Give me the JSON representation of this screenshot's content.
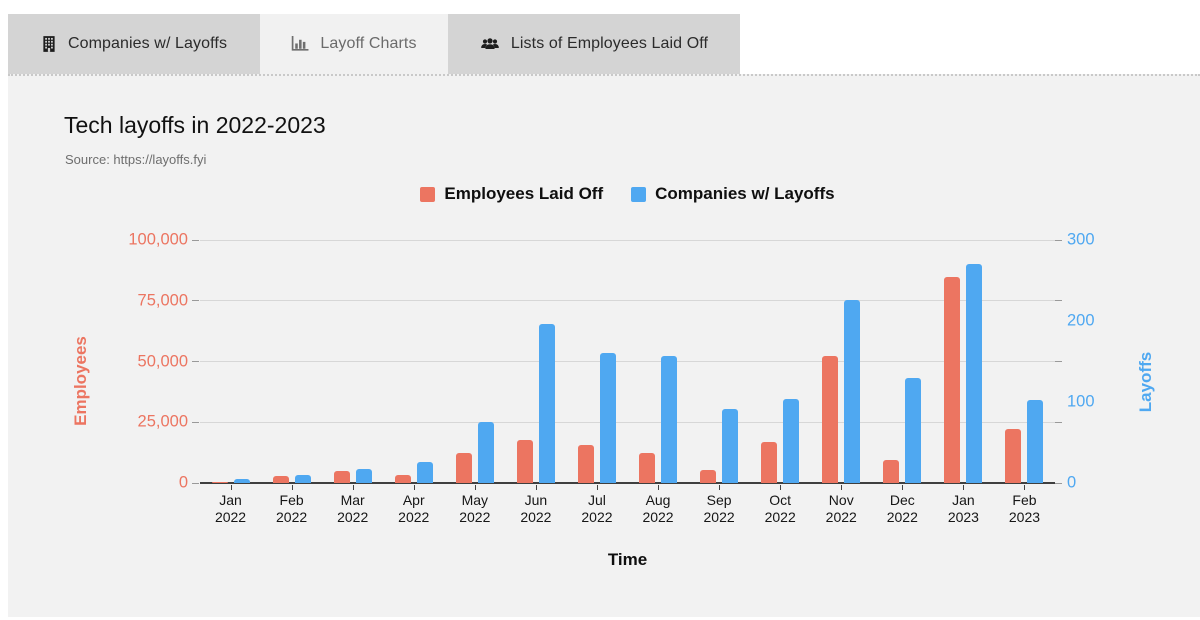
{
  "tabs": [
    {
      "label": "Companies w/ Layoffs",
      "icon": "building-icon",
      "active": false
    },
    {
      "label": "Layoff Charts",
      "icon": "bar-chart-icon",
      "active": true
    },
    {
      "label": "Lists of Employees Laid Off",
      "icon": "users-icon",
      "active": false
    }
  ],
  "chart": {
    "title": "Tech layoffs in 2022-2023",
    "source": "Source: https://layoffs.fyi",
    "xlabel": "Time",
    "left_axis": {
      "title": "Employees",
      "color": "#EC7561",
      "tick_values": [
        0,
        25000,
        50000,
        75000,
        100000
      ],
      "tick_labels": [
        "0",
        "25,000",
        "50,000",
        "75,000",
        "100,000"
      ]
    },
    "right_axis": {
      "title": "Layoffs",
      "color": "#4FA8F1",
      "tick_values": [
        0,
        100,
        200,
        300
      ],
      "tick_labels": [
        "0",
        "100",
        "200",
        "300"
      ]
    }
  },
  "chart_data": {
    "type": "bar",
    "title": "Tech layoffs in 2022-2023",
    "xlabel": "Time",
    "ylabel_left": "Employees",
    "ylabel_right": "Layoffs",
    "ylim_left": [
      0,
      100000
    ],
    "ylim_right": [
      0,
      300
    ],
    "grid": true,
    "legend_position": "top-center",
    "categories": [
      "Jan 2022",
      "Feb 2022",
      "Mar 2022",
      "Apr 2022",
      "May 2022",
      "Jun 2022",
      "Jul 2022",
      "Aug 2022",
      "Sep 2022",
      "Oct 2022",
      "Nov 2022",
      "Dec 2022",
      "Jan 2023",
      "Feb 2023"
    ],
    "series": [
      {
        "name": "Employees Laid Off",
        "axis": "left",
        "color": "#EC7561",
        "values": [
          500,
          3000,
          5100,
          3300,
          12400,
          17500,
          15800,
          12400,
          5300,
          16700,
          52400,
          9400,
          84700,
          22300
        ]
      },
      {
        "name": "Companies w/ Layoffs",
        "axis": "right",
        "color": "#4FA8F1",
        "values": [
          5,
          10,
          17,
          26,
          75,
          196,
          160,
          157,
          91,
          104,
          226,
          130,
          270,
          103
        ]
      }
    ]
  }
}
